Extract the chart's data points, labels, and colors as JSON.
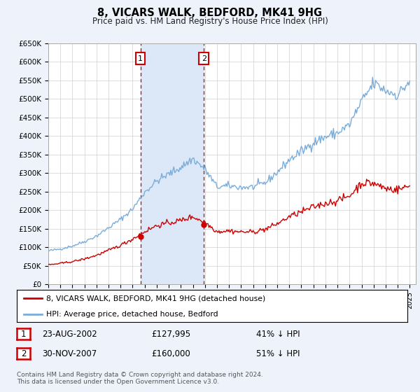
{
  "title": "8, VICARS WALK, BEDFORD, MK41 9HG",
  "subtitle": "Price paid vs. HM Land Registry's House Price Index (HPI)",
  "ylim": [
    0,
    650000
  ],
  "yticks": [
    0,
    50000,
    100000,
    150000,
    200000,
    250000,
    300000,
    350000,
    400000,
    450000,
    500000,
    550000,
    600000,
    650000
  ],
  "ytick_labels": [
    "£0",
    "£50K",
    "£100K",
    "£150K",
    "£200K",
    "£250K",
    "£300K",
    "£350K",
    "£400K",
    "£450K",
    "£500K",
    "£550K",
    "£600K",
    "£650K"
  ],
  "xlim_start": 1995.0,
  "xlim_end": 2025.5,
  "shade_start": 2002.64,
  "shade_end": 2007.92,
  "bg_color": "#eef2fa",
  "plot_bg": "#ffffff",
  "red_line_color": "#cc0000",
  "blue_line_color": "#7aaddb",
  "shade_color": "#dce8f8",
  "dashed_line_color": "#cc0000",
  "marker1_x": 2002.64,
  "marker1_y": 127995,
  "marker2_x": 2007.92,
  "marker2_y": 160000,
  "marker_color": "#cc0000",
  "legend_red": "8, VICARS WALK, BEDFORD, MK41 9HG (detached house)",
  "legend_blue": "HPI: Average price, detached house, Bedford",
  "table_row1": [
    "1",
    "23-AUG-2002",
    "£127,995",
    "41% ↓ HPI"
  ],
  "table_row2": [
    "2",
    "30-NOV-2007",
    "£160,000",
    "51% ↓ HPI"
  ],
  "footnote": "Contains HM Land Registry data © Crown copyright and database right 2024.\nThis data is licensed under the Open Government Licence v3.0."
}
